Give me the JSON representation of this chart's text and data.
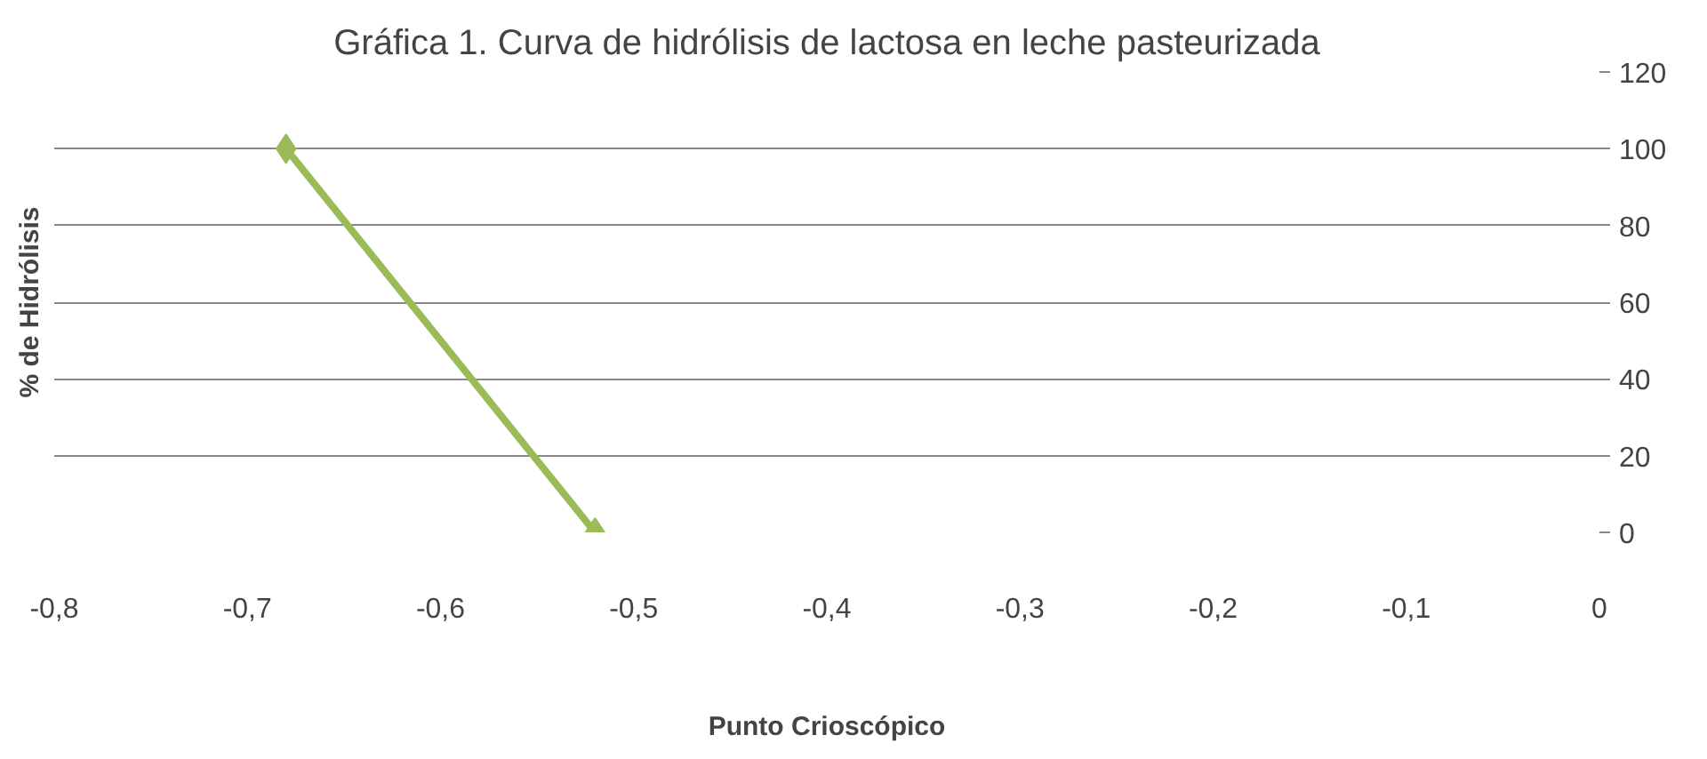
{
  "chart_data": {
    "type": "line",
    "title": "Gráfica 1. Curva de hidrólisis de lactosa en leche pasteurizada",
    "xlabel": "Punto Crioscópico",
    "ylabel": "% de Hidrólisis",
    "x": [
      -0.68,
      -0.52
    ],
    "series": [
      {
        "color": "#9bbb59",
        "values": [
          100,
          0
        ]
      }
    ],
    "xlim": [
      -0.8,
      0
    ],
    "xticks": [
      {
        "value": -0.8,
        "label": "-0,8"
      },
      {
        "value": -0.7,
        "label": "-0,7"
      },
      {
        "value": -0.6,
        "label": "-0,6"
      },
      {
        "value": -0.5,
        "label": "-0,5"
      },
      {
        "value": -0.4,
        "label": "-0,4"
      },
      {
        "value": -0.3,
        "label": "-0,3"
      },
      {
        "value": -0.2,
        "label": "-0,2"
      },
      {
        "value": -0.1,
        "label": "-0,1"
      },
      {
        "value": 0,
        "label": "0"
      }
    ],
    "ylim": [
      0,
      120
    ],
    "yticks": [
      0,
      20,
      40,
      60,
      80,
      100,
      120
    ],
    "grid": "y",
    "marker": "diamond",
    "line_style": "solid"
  }
}
